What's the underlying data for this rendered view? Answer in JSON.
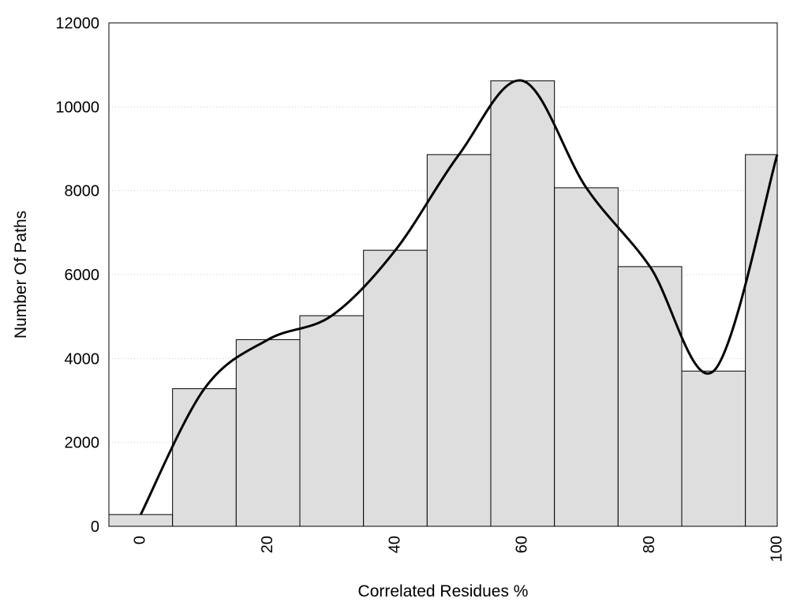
{
  "chart_data": {
    "type": "bar",
    "title": "",
    "xlabel": "Correlated Residues %",
    "ylabel": "Number Of Paths",
    "x": [
      0,
      10,
      20,
      30,
      40,
      50,
      60,
      70,
      80,
      90,
      100
    ],
    "values": [
      280,
      3280,
      4450,
      5020,
      6580,
      8860,
      10620,
      8070,
      6190,
      3700,
      8860
    ],
    "x_ticks": [
      "0",
      "20",
      "40",
      "60",
      "80",
      "100"
    ],
    "y_ticks": [
      "0",
      "2000",
      "4000",
      "6000",
      "8000",
      "10000",
      "12000"
    ],
    "ylim": [
      0,
      12000
    ],
    "xlim": [
      -5,
      100
    ],
    "grid": "horizontal dotted",
    "legend": "none",
    "smooth_curve": "black",
    "bar_color": "#dedede",
    "bar_edge_color": "#000000"
  }
}
